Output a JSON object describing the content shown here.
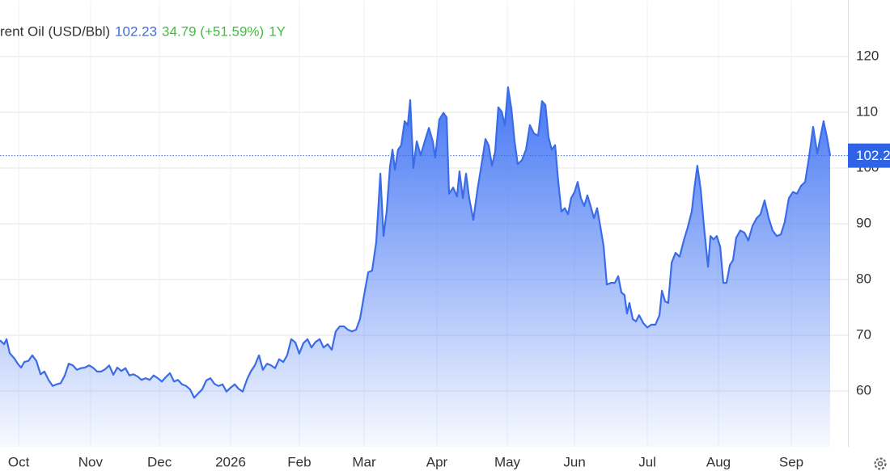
{
  "chart_data": {
    "type": "line",
    "title": "rent Oil (USD/Bbl)",
    "price": 102.23,
    "change": "34.79 (+51.59%)",
    "period": "1Y",
    "color": "#3b6ce8",
    "x": [
      0,
      1.7,
      2.7,
      4,
      6,
      7.3,
      8.7,
      10,
      11.7,
      13.3,
      15,
      16.7,
      18.3,
      20,
      21.7,
      23.3,
      25,
      26.7,
      28.3,
      30,
      31.7,
      33.3,
      35,
      36.7,
      38.3,
      40,
      41.7,
      43.3,
      45,
      46.7,
      48.3,
      50,
      51.7,
      53.3,
      55,
      56.7,
      58.3,
      60,
      61.7,
      63.3,
      65,
      66.7,
      68.3,
      70,
      71.7,
      73.3,
      75,
      76.7,
      78.3,
      80,
      81.7,
      83.3,
      85,
      86.7,
      88.3,
      90,
      91.7,
      93.3,
      95,
      96.7,
      98.3,
      100,
      101.7,
      103.3,
      105,
      106.7,
      108.3,
      110,
      111.7,
      113.3,
      115,
      116.7,
      118.3,
      120,
      121.7,
      123.3,
      125,
      126.7,
      128.3,
      130,
      131.7,
      133.3,
      135,
      136.7,
      138.3,
      140,
      141.7,
      143.3,
      145,
      146.7,
      148.3,
      150,
      151.7,
      153.3,
      155,
      156.7,
      158,
      159.3,
      160.7,
      161.7,
      162.7,
      164,
      165.3,
      166.7,
      168,
      169,
      170.3,
      171.7,
      173.3,
      175,
      176.7,
      178.3,
      179.3,
      181,
      182.7,
      184,
      185,
      186.7,
      188.3,
      189.3,
      190.7,
      192,
      193.3,
      195,
      196.7,
      198.3,
      200,
      201.3,
      202.7,
      204,
      205.3,
      206.7,
      208,
      209.3,
      210.7,
      212,
      213.3,
      215,
      216.7,
      218.3,
      220,
      221.7,
      223.3,
      224.7,
      226,
      227.3,
      228.7,
      230,
      231.3,
      232.7,
      234,
      235.3,
      236.7,
      238,
      239.3,
      240.7,
      242,
      243.3,
      244.7,
      246,
      247.3,
      248.7,
      250,
      251.7,
      253.3,
      254.7,
      256,
      257.3,
      258.3,
      259.3,
      260.7,
      262,
      263.3,
      265,
      266.7,
      268.3,
      270,
      271.7,
      272.7,
      274,
      275.3,
      276.7,
      278.3,
      280,
      281.7,
      283.3,
      285,
      286,
      287.3,
      288.7,
      290,
      291.7,
      292.7,
      294,
      295.3,
      296.7,
      298,
      299.3,
      300.7,
      302,
      303.3,
      305,
      306.7,
      308.3,
      310,
      311.7,
      313.3,
      315,
      316.7,
      318.3,
      320,
      321.7,
      323.3,
      325,
      326.7,
      328.3,
      330,
      331.7,
      333.3,
      335,
      336.7,
      338.3,
      339.3,
      340.7,
      342
    ],
    "values": [
      69.1,
      68.4,
      69.3,
      66.8,
      65.8,
      64.9,
      64.2,
      65.2,
      65.4,
      66.4,
      65.4,
      63.0,
      63.5,
      62.0,
      60.9,
      61.2,
      61.4,
      62.8,
      64.9,
      64.6,
      63.8,
      64.1,
      64.2,
      64.6,
      64.2,
      63.5,
      63.5,
      63.9,
      64.6,
      62.9,
      64.2,
      63.6,
      64.1,
      62.8,
      63.0,
      62.6,
      62.0,
      62.3,
      62.0,
      62.8,
      62.3,
      61.7,
      62.5,
      63.2,
      61.7,
      62.0,
      61.2,
      60.9,
      60.3,
      58.8,
      59.6,
      60.3,
      61.9,
      62.3,
      61.3,
      60.9,
      61.2,
      59.9,
      60.6,
      61.2,
      60.4,
      59.9,
      62.0,
      63.5,
      64.6,
      66.4,
      63.8,
      64.9,
      64.6,
      64.1,
      65.7,
      65.2,
      66.4,
      69.3,
      68.7,
      66.7,
      68.6,
      69.3,
      67.8,
      68.8,
      69.3,
      67.8,
      68.4,
      67.4,
      70.7,
      71.6,
      71.6,
      71.0,
      70.7,
      71.0,
      72.9,
      77.2,
      81.3,
      81.6,
      86.7,
      99.0,
      87.8,
      92.2,
      100.4,
      103.3,
      99.7,
      103.3,
      104.1,
      108.4,
      107.7,
      112.2,
      100.0,
      104.8,
      102.3,
      104.8,
      107.2,
      104.8,
      101.9,
      108.7,
      109.9,
      109.1,
      95.4,
      96.5,
      94.9,
      99.4,
      94.6,
      99.0,
      94.6,
      90.7,
      96.1,
      100.4,
      105.2,
      104.1,
      100.4,
      102.9,
      110.9,
      110.1,
      107.7,
      114.5,
      110.6,
      104.8,
      100.7,
      101.4,
      103.3,
      107.7,
      106.2,
      105.8,
      112.0,
      111.3,
      105.5,
      103.3,
      104.1,
      97.5,
      92.2,
      92.8,
      91.7,
      94.6,
      95.7,
      97.5,
      94.6,
      93.2,
      95.1,
      93.2,
      91.0,
      92.8,
      89.6,
      85.9,
      79.1,
      79.4,
      79.4,
      80.6,
      77.7,
      77.2,
      73.9,
      75.8,
      72.9,
      72.5,
      73.6,
      72.2,
      71.4,
      71.9,
      71.9,
      73.6,
      78.0,
      76.1,
      75.8,
      83.0,
      84.8,
      84.1,
      87.0,
      89.3,
      92.2,
      96.1,
      100.4,
      96.1,
      89.6,
      82.3,
      87.8,
      87.2,
      87.8,
      85.9,
      79.4,
      79.4,
      82.6,
      83.5,
      87.5,
      88.8,
      88.4,
      87.0,
      89.6,
      91.0,
      91.7,
      94.2,
      91.0,
      88.8,
      87.8,
      88.1,
      90.3,
      94.6,
      95.7,
      95.4,
      96.8,
      97.5,
      101.9,
      107.4,
      102.6,
      106.2,
      108.4,
      105.5,
      102.23
    ],
    "xlim": [
      0,
      350
    ],
    "xticks": [
      {
        "value": 7.7,
        "label": "Oct"
      },
      {
        "value": 37.3,
        "label": "Nov"
      },
      {
        "value": 65.7,
        "label": "Dec"
      },
      {
        "value": 95,
        "label": "2026"
      },
      {
        "value": 123.3,
        "label": "Feb"
      },
      {
        "value": 150,
        "label": "Mar"
      },
      {
        "value": 180,
        "label": "Apr"
      },
      {
        "value": 209,
        "label": "May"
      },
      {
        "value": 236.7,
        "label": "Jun"
      },
      {
        "value": 266.7,
        "label": "Jul"
      },
      {
        "value": 296,
        "label": "Aug"
      },
      {
        "value": 326,
        "label": "Sep"
      }
    ],
    "ylim": [
      50,
      130
    ],
    "yticks": [
      60,
      70,
      80,
      90,
      100,
      110,
      120
    ],
    "grid": true
  }
}
